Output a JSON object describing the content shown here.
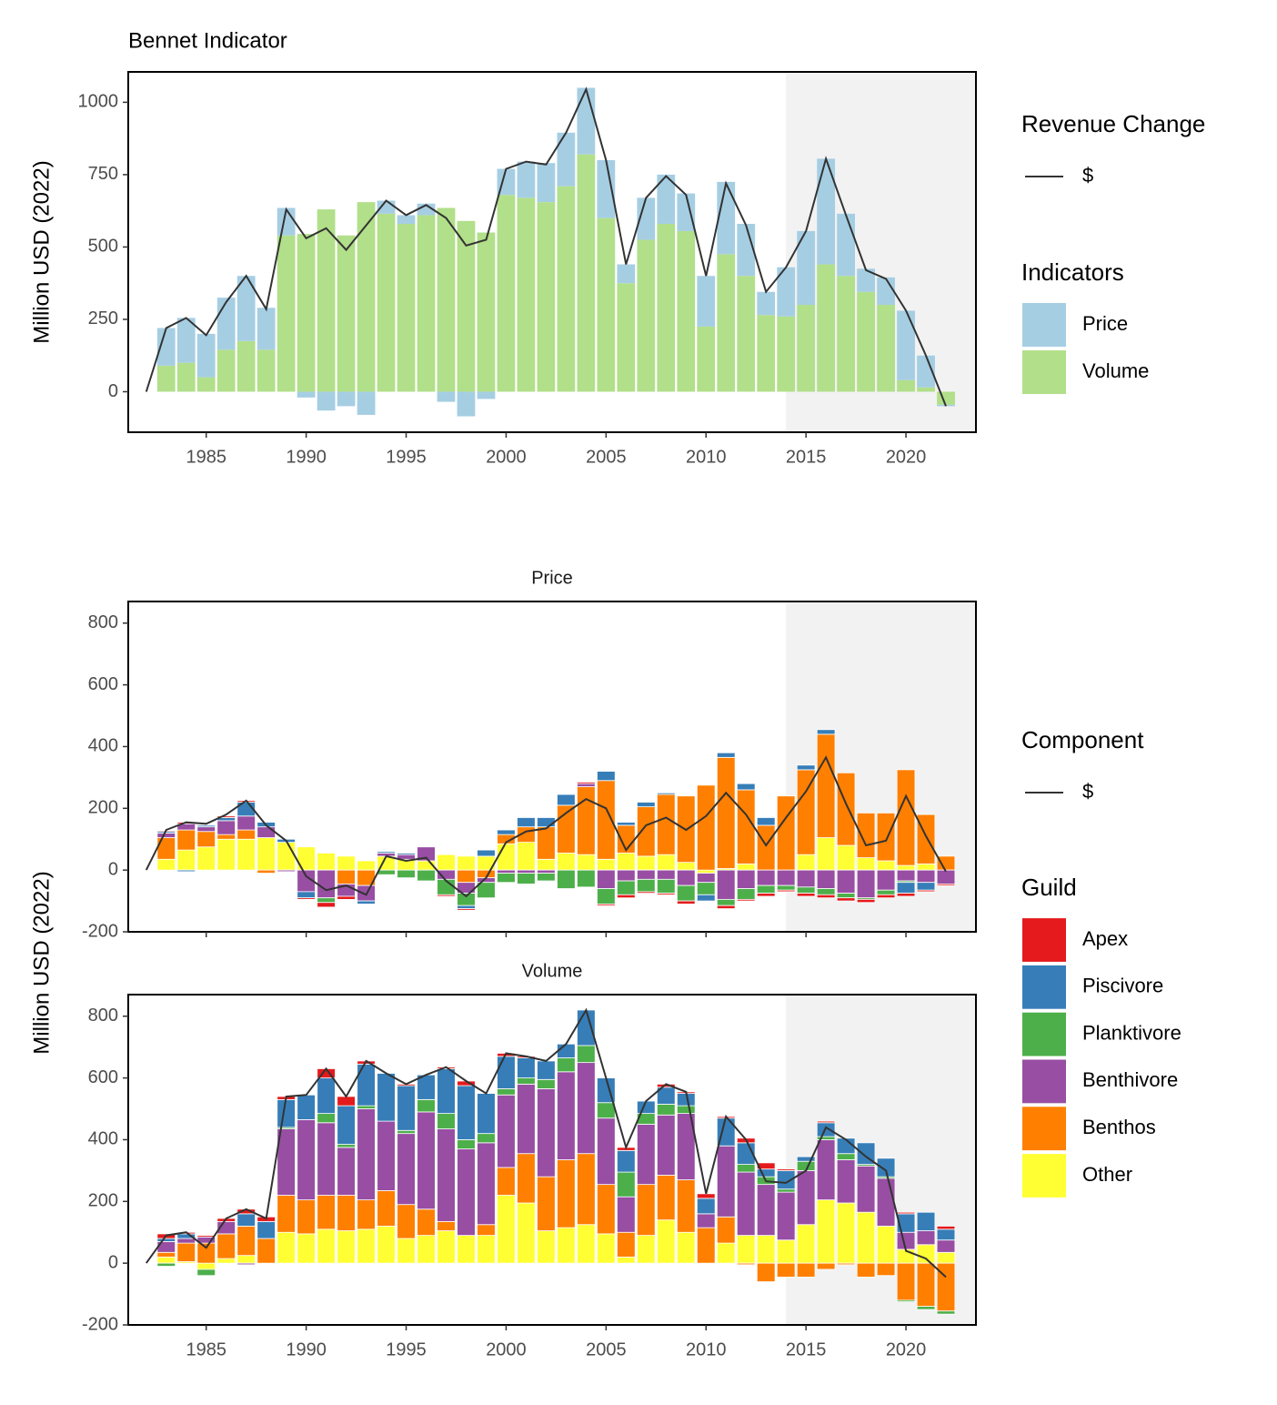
{
  "chart_data": [
    {
      "type": "bar",
      "title": "Bennet Indicator",
      "y_label": "Million USD (2022)",
      "x": [
        1983,
        1984,
        1985,
        1986,
        1987,
        1988,
        1989,
        1990,
        1991,
        1992,
        1993,
        1994,
        1995,
        1996,
        1997,
        1998,
        1999,
        2000,
        2001,
        2002,
        2003,
        2004,
        2005,
        2006,
        2007,
        2008,
        2009,
        2010,
        2011,
        2012,
        2013,
        2014,
        2015,
        2016,
        2017,
        2018,
        2019,
        2020,
        2021,
        2022
      ],
      "series": [
        {
          "name": "Price",
          "color": "#a6cee3",
          "values": [
            130,
            155,
            150,
            180,
            225,
            145,
            95,
            -20,
            -65,
            -50,
            -80,
            45,
            30,
            40,
            -35,
            -85,
            -25,
            90,
            125,
            135,
            185,
            230,
            200,
            65,
            145,
            170,
            130,
            175,
            250,
            180,
            80,
            170,
            255,
            365,
            215,
            80,
            95,
            240,
            110,
            -5
          ]
        },
        {
          "name": "Volume",
          "color": "#b2df8a",
          "values": [
            90,
            100,
            50,
            145,
            175,
            145,
            540,
            545,
            630,
            540,
            655,
            615,
            580,
            610,
            635,
            590,
            550,
            680,
            670,
            655,
            710,
            820,
            600,
            375,
            525,
            580,
            555,
            225,
            475,
            400,
            265,
            260,
            300,
            440,
            400,
            345,
            300,
            40,
            15,
            -45
          ]
        }
      ],
      "line": {
        "name": "$",
        "color": "#333333",
        "x": [
          1982,
          1983,
          1984,
          1985,
          1986,
          1987,
          1988,
          1989,
          1990,
          1991,
          1992,
          1993,
          1994,
          1995,
          1996,
          1997,
          1998,
          1999,
          2000,
          2001,
          2002,
          2003,
          2004,
          2005,
          2006,
          2007,
          2008,
          2009,
          2010,
          2011,
          2012,
          2013,
          2014,
          2015,
          2016,
          2017,
          2018,
          2019,
          2020,
          2021,
          2022
        ],
        "values": [
          0,
          220,
          255,
          195,
          310,
          400,
          285,
          630,
          530,
          565,
          490,
          575,
          660,
          610,
          645,
          600,
          505,
          525,
          770,
          795,
          785,
          895,
          1045,
          800,
          440,
          670,
          745,
          680,
          400,
          720,
          575,
          345,
          430,
          555,
          805,
          610,
          420,
          390,
          280,
          125,
          -50
        ]
      },
      "line_legend_title": "Revenue Change",
      "bar_legend_title": "Indicators",
      "highlight_from": 2014,
      "xlim": [
        1981.1,
        2023.5
      ],
      "ylim": [
        -140,
        1105
      ],
      "xticks": [
        1985,
        1990,
        1995,
        2000,
        2005,
        2010,
        2015,
        2020
      ],
      "yticks": [
        0,
        250,
        500,
        750,
        1000
      ]
    },
    {
      "type": "bar",
      "facet": "Price",
      "y_label": "Million USD (2022)",
      "x": [
        1983,
        1984,
        1985,
        1986,
        1987,
        1988,
        1989,
        1990,
        1991,
        1992,
        1993,
        1994,
        1995,
        1996,
        1997,
        1998,
        1999,
        2000,
        2001,
        2002,
        2003,
        2004,
        2005,
        2006,
        2007,
        2008,
        2009,
        2010,
        2011,
        2012,
        2013,
        2014,
        2015,
        2016,
        2017,
        2018,
        2019,
        2020,
        2021,
        2022
      ],
      "series": [
        {
          "name": "Apex",
          "color": "#e41a1c",
          "values": [
            3,
            5,
            0,
            5,
            5,
            0,
            0,
            -5,
            -15,
            -10,
            0,
            0,
            0,
            0,
            -5,
            -5,
            0,
            0,
            0,
            0,
            0,
            5,
            -5,
            -10,
            -5,
            -5,
            -10,
            0,
            -10,
            -5,
            -10,
            -5,
            -10,
            -10,
            -10,
            -10,
            -10,
            -10,
            -5,
            -5
          ]
        },
        {
          "name": "Piscivore",
          "color": "#377eb8",
          "values": [
            5,
            -5,
            5,
            10,
            45,
            15,
            10,
            -20,
            0,
            0,
            -10,
            5,
            5,
            0,
            0,
            -10,
            20,
            15,
            30,
            30,
            35,
            0,
            30,
            10,
            15,
            5,
            0,
            -20,
            15,
            20,
            25,
            0,
            15,
            15,
            0,
            0,
            0,
            -35,
            -25,
            0
          ]
        },
        {
          "name": "Planktivore",
          "color": "#4daf4a",
          "values": [
            0,
            0,
            0,
            0,
            0,
            0,
            0,
            0,
            -15,
            0,
            0,
            -15,
            -25,
            -35,
            -50,
            -40,
            -50,
            -30,
            -35,
            -25,
            -60,
            -55,
            -50,
            -45,
            -40,
            -45,
            -50,
            -40,
            -20,
            -35,
            -25,
            -15,
            -20,
            -20,
            -15,
            -5,
            -15,
            -5,
            0,
            0
          ]
        },
        {
          "name": "Benthivore",
          "color": "#984ea3",
          "values": [
            15,
            20,
            15,
            45,
            45,
            35,
            -5,
            -70,
            -90,
            -40,
            -50,
            10,
            15,
            45,
            -30,
            -35,
            -15,
            -10,
            -10,
            -10,
            0,
            10,
            -60,
            -35,
            -30,
            -30,
            -50,
            -30,
            -95,
            -60,
            -50,
            -50,
            -55,
            -60,
            -75,
            -90,
            -65,
            -35,
            -40,
            -45
          ]
        },
        {
          "name": "Benthos",
          "color": "#ff7f00",
          "values": [
            70,
            65,
            50,
            15,
            30,
            -10,
            0,
            0,
            0,
            -45,
            -50,
            0,
            0,
            0,
            0,
            -40,
            -25,
            30,
            50,
            105,
            155,
            220,
            255,
            90,
            160,
            195,
            215,
            275,
            360,
            240,
            145,
            240,
            275,
            335,
            235,
            145,
            155,
            310,
            160,
            45
          ]
        },
        {
          "name": "Other",
          "color": "#ffff33",
          "values": [
            35,
            65,
            75,
            100,
            100,
            105,
            90,
            75,
            55,
            45,
            30,
            45,
            35,
            30,
            50,
            45,
            45,
            85,
            90,
            35,
            55,
            50,
            35,
            55,
            45,
            50,
            25,
            -10,
            5,
            20,
            0,
            0,
            50,
            105,
            80,
            40,
            30,
            15,
            20,
            0
          ]
        }
      ],
      "line": {
        "name": "$",
        "color": "#333333",
        "x": [
          1982,
          1983,
          1984,
          1985,
          1986,
          1987,
          1988,
          1989,
          1990,
          1991,
          1992,
          1993,
          1994,
          1995,
          1996,
          1997,
          1998,
          1999,
          2000,
          2001,
          2002,
          2003,
          2004,
          2005,
          2006,
          2007,
          2008,
          2009,
          2010,
          2011,
          2012,
          2013,
          2014,
          2015,
          2016,
          2017,
          2018,
          2019,
          2020,
          2021,
          2022
        ],
        "values": [
          0,
          130,
          155,
          150,
          180,
          225,
          145,
          95,
          -20,
          -65,
          -50,
          -80,
          45,
          30,
          40,
          -35,
          -85,
          -25,
          90,
          125,
          135,
          185,
          230,
          200,
          65,
          145,
          170,
          130,
          175,
          250,
          180,
          80,
          170,
          255,
          365,
          215,
          80,
          95,
          240,
          110,
          -5
        ]
      },
      "line_legend_title": "Component",
      "bar_legend_title": "Guild",
      "highlight_from": 2014,
      "xlim": [
        1981.1,
        2023.5
      ],
      "ylim": [
        -200,
        870
      ],
      "yticks": [
        -200,
        0,
        200,
        400,
        600,
        800
      ]
    },
    {
      "type": "bar",
      "facet": "Volume",
      "x": [
        1983,
        1984,
        1985,
        1986,
        1987,
        1988,
        1989,
        1990,
        1991,
        1992,
        1993,
        1994,
        1995,
        1996,
        1997,
        1998,
        1999,
        2000,
        2001,
        2002,
        2003,
        2004,
        2005,
        2006,
        2007,
        2008,
        2009,
        2010,
        2011,
        2012,
        2013,
        2014,
        2015,
        2016,
        2017,
        2018,
        2019,
        2020,
        2021,
        2022
      ],
      "series": [
        {
          "values": [
            15,
            5,
            5,
            10,
            15,
            15,
            10,
            0,
            30,
            30,
            10,
            0,
            5,
            0,
            5,
            15,
            0,
            10,
            5,
            0,
            0,
            0,
            0,
            10,
            0,
            10,
            5,
            15,
            5,
            15,
            20,
            5,
            0,
            5,
            0,
            0,
            0,
            5,
            0,
            10
          ]
        },
        {
          "values": [
            10,
            15,
            0,
            0,
            40,
            55,
            90,
            80,
            115,
            125,
            135,
            155,
            145,
            80,
            145,
            175,
            130,
            105,
            65,
            60,
            45,
            115,
            80,
            70,
            40,
            55,
            40,
            50,
            90,
            70,
            25,
            60,
            15,
            45,
            50,
            70,
            60,
            60,
            60,
            35
          ]
        },
        {
          "values": [
            -10,
            0,
            -20,
            0,
            0,
            0,
            5,
            0,
            30,
            10,
            10,
            0,
            10,
            40,
            50,
            30,
            30,
            20,
            20,
            30,
            45,
            55,
            50,
            80,
            35,
            35,
            25,
            0,
            0,
            25,
            25,
            10,
            30,
            10,
            20,
            5,
            5,
            -5,
            -10,
            -10
          ]
        },
        {
          "values": [
            35,
            15,
            20,
            40,
            -5,
            0,
            215,
            260,
            235,
            155,
            295,
            225,
            230,
            315,
            300,
            280,
            265,
            235,
            225,
            285,
            285,
            295,
            215,
            115,
            195,
            195,
            215,
            45,
            230,
            205,
            165,
            155,
            175,
            195,
            140,
            150,
            155,
            55,
            45,
            40
          ]
        },
        {
          "values": [
            15,
            60,
            65,
            80,
            95,
            80,
            120,
            110,
            110,
            115,
            95,
            115,
            110,
            85,
            30,
            0,
            35,
            90,
            160,
            175,
            220,
            230,
            160,
            80,
            165,
            145,
            170,
            115,
            85,
            -5,
            -60,
            -45,
            -45,
            -20,
            -5,
            -45,
            -40,
            -120,
            -140,
            -155
          ]
        },
        {
          "values": [
            20,
            5,
            -20,
            15,
            25,
            0,
            100,
            95,
            110,
            105,
            110,
            120,
            80,
            90,
            105,
            90,
            90,
            220,
            195,
            105,
            115,
            125,
            95,
            20,
            90,
            140,
            100,
            0,
            65,
            90,
            90,
            75,
            125,
            205,
            195,
            165,
            120,
            45,
            60,
            35
          ]
        }
      ],
      "line": {
        "x": [
          1982,
          1983,
          1984,
          1985,
          1986,
          1987,
          1988,
          1989,
          1990,
          1991,
          1992,
          1993,
          1994,
          1995,
          1996,
          1997,
          1998,
          1999,
          2000,
          2001,
          2002,
          2003,
          2004,
          2005,
          2006,
          2007,
          2008,
          2009,
          2010,
          2011,
          2012,
          2013,
          2014,
          2015,
          2016,
          2017,
          2018,
          2019,
          2020,
          2021,
          2022
        ],
        "values": [
          0,
          90,
          100,
          50,
          145,
          175,
          145,
          540,
          545,
          630,
          540,
          655,
          615,
          580,
          610,
          635,
          590,
          550,
          680,
          670,
          655,
          710,
          820,
          600,
          375,
          525,
          580,
          555,
          225,
          475,
          400,
          265,
          260,
          300,
          440,
          400,
          345,
          300,
          40,
          15,
          -45
        ]
      },
      "highlight_from": 2014,
      "xlim": [
        1981.1,
        2023.5
      ],
      "ylim": [
        -200,
        870
      ],
      "xticks": [
        1985,
        1990,
        1995,
        2000,
        2005,
        2010,
        2015,
        2020
      ],
      "yticks": [
        -200,
        0,
        200,
        400,
        600,
        800
      ]
    }
  ]
}
